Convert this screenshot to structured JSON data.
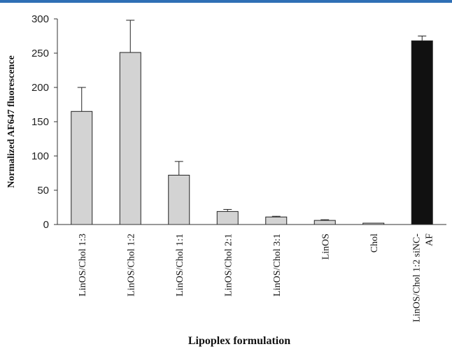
{
  "chart_data": {
    "type": "bar",
    "title": "",
    "xlabel": "Lipoplex formulation",
    "ylabel": "Normalized AF647 fluorescence",
    "ylim": [
      0,
      300
    ],
    "yticks": [
      0,
      50,
      100,
      150,
      200,
      250,
      300
    ],
    "categories": [
      "LinOS/Chol 1:3",
      "LinOS/Chol 1:2",
      "LinOS/Chol 1:1",
      "LinOS/Chol 2:1",
      "LinOS/Chol 3:1",
      "LinOS",
      "Chol",
      "LinOS/Chol 1:2 siNC-AF"
    ],
    "values": [
      165,
      251,
      72,
      19,
      11,
      6,
      2,
      268
    ],
    "error_upper": [
      35,
      47,
      20,
      3,
      1,
      1,
      0,
      7
    ],
    "bar_colors": [
      "#d3d3d3",
      "#d3d3d3",
      "#d3d3d3",
      "#d3d3d3",
      "#d3d3d3",
      "#d3d3d3",
      "#d3d3d3",
      "#111111"
    ],
    "grid": false
  }
}
